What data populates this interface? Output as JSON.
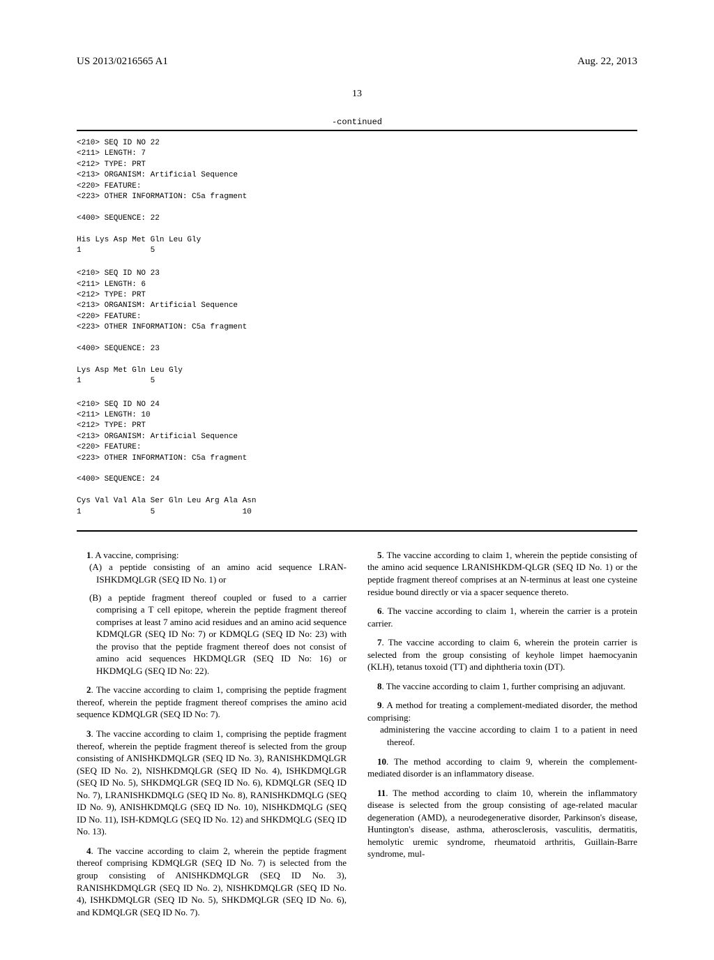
{
  "header": {
    "pub_number": "US 2013/0216565 A1",
    "pub_date": "Aug. 22, 2013"
  },
  "page_number": "13",
  "continued_label": "-continued",
  "sequences": [
    {
      "lines": [
        "<210> SEQ ID NO 22",
        "<211> LENGTH: 7",
        "<212> TYPE: PRT",
        "<213> ORGANISM: Artificial Sequence",
        "<220> FEATURE:",
        "<223> OTHER INFORMATION: C5a fragment",
        "",
        "<400> SEQUENCE: 22",
        "",
        "His Lys Asp Met Gln Leu Gly",
        "1               5"
      ]
    },
    {
      "lines": [
        "<210> SEQ ID NO 23",
        "<211> LENGTH: 6",
        "<212> TYPE: PRT",
        "<213> ORGANISM: Artificial Sequence",
        "<220> FEATURE:",
        "<223> OTHER INFORMATION: C5a fragment",
        "",
        "<400> SEQUENCE: 23",
        "",
        "Lys Asp Met Gln Leu Gly",
        "1               5"
      ]
    },
    {
      "lines": [
        "<210> SEQ ID NO 24",
        "<211> LENGTH: 10",
        "<212> TYPE: PRT",
        "<213> ORGANISM: Artificial Sequence",
        "<220> FEATURE:",
        "<223> OTHER INFORMATION: C5a fragment",
        "",
        "<400> SEQUENCE: 24",
        "",
        "Cys Val Val Ala Ser Gln Leu Arg Ala Asn",
        "1               5                   10"
      ]
    }
  ],
  "claims": {
    "c1_intro": "A vaccine, comprising:",
    "c1_a": "(A) a peptide consisting of an amino acid sequence LRAN-ISHKDMQLGR (SEQ ID No. 1) or",
    "c1_b": "(B) a peptide fragment thereof coupled or fused to a carrier comprising a T cell epitope, wherein the peptide fragment thereof comprises at least 7 amino acid residues and an amino acid sequence KDMQLGR (SEQ ID No: 7) or KDMQLG (SEQ ID No: 23) with the proviso that the peptide fragment thereof does not consist of amino acid sequences HKDMQLGR (SEQ ID No: 16) or HKDMQLG (SEQ ID No: 22).",
    "c2": "The vaccine according to claim 1, comprising the peptide fragment thereof, wherein the peptide fragment thereof comprises the amino acid sequence KDMQLGR (SEQ ID No: 7).",
    "c3": "The vaccine according to claim 1, comprising the peptide fragment thereof, wherein the peptide fragment thereof is selected from the group consisting of ANISHKDMQLGR (SEQ ID No. 3), RANISHKDMQLGR (SEQ ID No. 2), NISHKDMQLGR (SEQ ID No. 4), ISHKDMQLGR (SEQ ID No. 5), SHKDMQLGR (SEQ ID No. 6), KDMQLGR (SEQ ID No. 7), LRANISHKDMQLG (SEQ ID No. 8), RANISHKDMQLG (SEQ ID No. 9), ANISHKDMQLG (SEQ ID No. 10), NISHKDMQLG (SEQ ID No. 11), ISH-KDMQLG (SEQ ID No. 12) and SHKDMQLG (SEQ ID No. 13).",
    "c4": "The vaccine according to claim 2, wherein the peptide fragment thereof comprising KDMQLGR (SEQ ID No. 7) is selected from the group consisting of ANISHKDMQLGR (SEQ ID No. 3), RANISHKDMQLGR (SEQ ID No. 2), NISHKDMQLGR (SEQ ID No. 4), ISHKDMQLGR (SEQ ID No. 5), SHKDMQLGR (SEQ ID No. 6), and KDMQLGR (SEQ ID No. 7).",
    "c5": "The vaccine according to claim 1, wherein the peptide consisting of the amino acid sequence LRANISHKDM-QLGR (SEQ ID No. 1) or the peptide fragment thereof comprises at an N-terminus at least one cysteine residue bound directly or via a spacer sequence thereto.",
    "c6": "The vaccine according to claim 1, wherein the carrier is a protein carrier.",
    "c7": "The vaccine according to claim 6, wherein the protein carrier is selected from the group consisting of keyhole limpet haemocyanin (KLH), tetanus toxoid (TT) and diphtheria toxin (DT).",
    "c8": "The vaccine according to claim 1, further comprising an adjuvant.",
    "c9_intro": "A method for treating a complement-mediated disorder, the method comprising:",
    "c9_sub": "administering the vaccine according to claim 1 to a patient in need thereof.",
    "c10": "The method according to claim 9, wherein the complement-mediated disorder is an inflammatory disease.",
    "c11": "The method according to claim 10, wherein the inflammatory disease is selected from the group consisting of age-related macular degeneration (AMD), a neurodegenerative disorder, Parkinson's disease, Huntington's disease, asthma, atherosclerosis, vasculitis, dermatitis, hemolytic uremic syndrome, rheumatoid arthritis, Guillain-Barre syndrome, mul-"
  }
}
